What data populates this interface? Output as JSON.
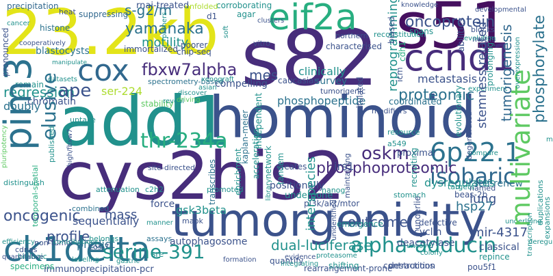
{
  "palette": {
    "dark_purple": "#45105f",
    "purple": "#472d7b",
    "indigo": "#3b528b",
    "blue": "#31688e",
    "teal_blue": "#2c728e",
    "teal": "#21918c",
    "sea_green": "#28ae80",
    "green": "#5ec962",
    "lime": "#addc30",
    "yellow": "#e3e419"
  },
  "words": [
    {
      "text": "23.2kb",
      "color": "yellow"
    },
    {
      "text": "s82",
      "color": "purple"
    },
    {
      "text": "s51",
      "color": "dark_purple"
    },
    {
      "text": "add1",
      "color": "teal"
    },
    {
      "text": "hominoid",
      "color": "indigo"
    },
    {
      "text": "cys2his2",
      "color": "purple"
    },
    {
      "text": "tumorgenicity",
      "color": "indigo"
    },
    {
      "text": "eif2a",
      "color": "sea_green"
    },
    {
      "text": "ccnd1",
      "color": "purple"
    },
    {
      "text": "pim3",
      "color": "teal_blue"
    },
    {
      "text": "ck1delta",
      "color": "teal_blue"
    },
    {
      "text": "cox",
      "color": "blue"
    },
    {
      "text": "fbxw7alpha",
      "color": "purple"
    },
    {
      "text": "isobaric",
      "color": "blue"
    },
    {
      "text": "multivariate",
      "color": "green"
    },
    {
      "text": "thr-234a",
      "color": "sea_green"
    },
    {
      "text": "6p22.1",
      "color": "teal_blue"
    },
    {
      "text": "serine-391",
      "color": "teal"
    },
    {
      "text": "alpha-adducin",
      "color": "teal"
    },
    {
      "text": "oskm",
      "color": "purple"
    },
    {
      "text": "elusive",
      "color": "teal_blue"
    },
    {
      "text": "phosphoproteomic",
      "color": "purple"
    },
    {
      "text": "tumorigenesis",
      "color": "blue"
    },
    {
      "text": "phosphorylate",
      "color": "teal_blue"
    },
    {
      "text": "yamanaka",
      "color": "teal_blue"
    },
    {
      "text": "motility",
      "color": "teal"
    },
    {
      "text": "s-g2/m",
      "color": "teal_blue"
    },
    {
      "text": "oncoprotein",
      "color": "indigo"
    },
    {
      "text": "regression",
      "color": "teal"
    },
    {
      "text": "ape",
      "color": "indigo"
    },
    {
      "text": "mes",
      "color": "indigo"
    },
    {
      "text": "ser-224",
      "color": "lime"
    },
    {
      "text": "proteomic",
      "color": "teal_blue"
    },
    {
      "text": "phosphopeptide",
      "color": "teal_blue"
    },
    {
      "text": "oncogenic",
      "color": "indigo"
    },
    {
      "text": "profile",
      "color": "indigo"
    },
    {
      "text": "outcome",
      "color": "indigo"
    },
    {
      "text": "mass",
      "color": "indigo"
    },
    {
      "text": "interspecies",
      "color": "teal"
    },
    {
      "text": "lung",
      "color": "indigo"
    },
    {
      "text": "hsp27",
      "color": "teal_blue"
    },
    {
      "text": "mir-4317",
      "color": "indigo"
    },
    {
      "text": "dual-luciferase",
      "color": "teal"
    },
    {
      "text": "reprogramming",
      "color": "teal"
    },
    {
      "text": "stemness-related",
      "color": "indigo"
    },
    {
      "text": "metastasis",
      "color": "indigo"
    },
    {
      "text": "irs1",
      "color": "indigo"
    },
    {
      "text": "dysregulates",
      "color": "teal"
    },
    {
      "text": "clinically",
      "color": "teal"
    },
    {
      "text": "survey",
      "color": "teal_blue"
    },
    {
      "text": "self-renew",
      "color": "teal_blue"
    },
    {
      "text": "sequentially",
      "color": "indigo"
    },
    {
      "text": "classical",
      "color": "indigo"
    },
    {
      "text": "gsk3beta",
      "color": "teal"
    },
    {
      "text": "compelling",
      "color": "indigo"
    },
    {
      "text": "coordinated",
      "color": "teal_blue"
    },
    {
      "text": "cyclin",
      "color": "indigo"
    },
    {
      "text": "autophagosome",
      "color": "indigo"
    },
    {
      "text": "deacetylase",
      "color": "indigo"
    },
    {
      "text": "positionally",
      "color": "indigo"
    },
    {
      "text": "chromatin",
      "color": "indigo"
    },
    {
      "text": "blastocysts",
      "color": "teal_blue"
    },
    {
      "text": "immunoprecipitation-pcr",
      "color": "indigo"
    },
    {
      "text": "rearrangement-prone",
      "color": "indigo"
    },
    {
      "text": "force",
      "color": "indigo"
    },
    {
      "text": "predict",
      "color": "teal_blue"
    },
    {
      "text": "histone",
      "color": "teal_blue"
    },
    {
      "text": "doubly",
      "color": "teal_blue"
    },
    {
      "text": "remain",
      "color": "teal"
    },
    {
      "text": "stability",
      "color": "green"
    },
    {
      "text": "suppressing",
      "color": "blue"
    },
    {
      "text": "precipitation",
      "color": "blue"
    },
    {
      "text": "rnai-treated",
      "color": "indigo"
    },
    {
      "text": "corroborating",
      "color": "teal"
    },
    {
      "text": "immortalized",
      "color": "indigo"
    },
    {
      "text": "agar",
      "color": "teal"
    },
    {
      "text": "d1",
      "color": "indigo"
    },
    {
      "text": "poorer",
      "color": "indigo"
    },
    {
      "text": "chip-seq",
      "color": "indigo"
    },
    {
      "text": "undergone",
      "color": "teal"
    },
    {
      "text": "pi3k/akt/mtor",
      "color": "indigo"
    },
    {
      "text": "combined",
      "color": "teal_blue"
    },
    {
      "text": "assays",
      "color": "teal_blue"
    },
    {
      "text": "spectrometry-based",
      "color": "teal_blue"
    },
    {
      "text": "recruiting",
      "color": "teal"
    },
    {
      "text": "biased",
      "color": "indigo"
    },
    {
      "text": "prolonging",
      "color": "teal"
    },
    {
      "text": "underlie",
      "color": "indigo"
    },
    {
      "text": "enrichment",
      "color": "teal"
    },
    {
      "text": "proximal",
      "color": "indigo"
    },
    {
      "text": "icm",
      "color": "indigo"
    },
    {
      "text": "contractions",
      "color": "indigo"
    },
    {
      "text": "beas-2b",
      "color": "indigo"
    },
    {
      "text": "pou5f1",
      "color": "indigo"
    },
    {
      "text": "quantify",
      "color": "indigo"
    },
    {
      "text": "vitro",
      "color": "indigo"
    },
    {
      "text": "characterised",
      "color": "indigo"
    },
    {
      "text": "caucasian",
      "color": "indigo"
    },
    {
      "text": "kaplan-meier",
      "color": "teal_blue"
    },
    {
      "text": "acceleration",
      "color": "teal"
    },
    {
      "text": "independent",
      "color": "teal"
    },
    {
      "text": "maintaining",
      "color": "indigo"
    },
    {
      "text": "creates",
      "color": "indigo"
    },
    {
      "text": "tandem",
      "color": "teal"
    },
    {
      "text": "network",
      "color": "teal"
    },
    {
      "text": "library",
      "color": "teal"
    },
    {
      "text": "transcribes",
      "color": "teal_blue"
    },
    {
      "text": "unidentified",
      "color": "indigo"
    },
    {
      "text": "emergence",
      "color": "teal"
    },
    {
      "text": "nanog",
      "color": "teal"
    },
    {
      "text": "c2h2",
      "color": "teal"
    },
    {
      "text": "mapk",
      "color": "indigo"
    },
    {
      "text": "sre",
      "color": "teal"
    },
    {
      "text": "belongs",
      "color": "teal"
    },
    {
      "text": "cos-7",
      "color": "indigo"
    },
    {
      "text": "cdnas",
      "color": "indigo"
    },
    {
      "text": "biologic",
      "color": "teal"
    },
    {
      "text": "specimens",
      "color": "sea_green"
    },
    {
      "text": "temporal-spatial",
      "color": "sea_green"
    },
    {
      "text": "published",
      "color": "teal"
    },
    {
      "text": "uptake",
      "color": "teal"
    },
    {
      "text": "site-directed",
      "color": "indigo"
    },
    {
      "text": "attenuation",
      "color": "teal"
    },
    {
      "text": "high/fbxw7",
      "color": "indigo"
    },
    {
      "text": "promoted",
      "color": "teal"
    },
    {
      "text": "destruction",
      "color": "indigo"
    },
    {
      "text": "shifting",
      "color": "teal"
    },
    {
      "text": "repince",
      "color": "teal"
    },
    {
      "text": "named",
      "color": "indigo"
    },
    {
      "text": "stomach",
      "color": "teal"
    },
    {
      "text": "targets",
      "color": "teal"
    },
    {
      "text": "defective",
      "color": "indigo"
    },
    {
      "text": "degenerated",
      "color": "indigo"
    },
    {
      "text": "evolutionary",
      "color": "teal"
    },
    {
      "text": "resource",
      "color": "teal"
    },
    {
      "text": "a549",
      "color": "teal"
    },
    {
      "text": "modifiers",
      "color": "indigo"
    },
    {
      "text": "recapitulated",
      "color": "indigo"
    },
    {
      "text": "spans",
      "color": "teal"
    },
    {
      "text": "cdh1",
      "color": "sea_green"
    },
    {
      "text": "abilities",
      "color": "indigo"
    },
    {
      "text": "blocks",
      "color": "indigo"
    },
    {
      "text": "motifs",
      "color": "indigo"
    },
    {
      "text": "reconstitution",
      "color": "teal"
    },
    {
      "text": "northern",
      "color": "indigo"
    },
    {
      "text": "tumorigenic",
      "color": "indigo"
    },
    {
      "text": "heat",
      "color": "indigo"
    },
    {
      "text": "cancer",
      "color": "teal"
    },
    {
      "text": "pronounced",
      "color": "indigo"
    },
    {
      "text": "pluripotency",
      "color": "green"
    },
    {
      "text": "distinguish",
      "color": "teal"
    },
    {
      "text": "efficiency",
      "color": "teal"
    },
    {
      "text": "non-tumor",
      "color": "indigo"
    },
    {
      "text": "quantitative",
      "color": "indigo"
    },
    {
      "text": "gastric",
      "color": "teal"
    },
    {
      "text": "manner",
      "color": "teal"
    },
    {
      "text": "labeling",
      "color": "teal"
    },
    {
      "text": "formation",
      "color": "indigo"
    },
    {
      "text": "colony",
      "color": "teal"
    },
    {
      "text": "compare",
      "color": "teal"
    },
    {
      "text": "expansions",
      "color": "teal"
    },
    {
      "text": "duplications",
      "color": "teal"
    },
    {
      "text": "experiment",
      "color": "teal"
    },
    {
      "text": "evolution",
      "color": "teal"
    },
    {
      "text": "knowledge",
      "color": "indigo"
    },
    {
      "text": "developmental",
      "color": "indigo"
    },
    {
      "text": "unfolded",
      "color": "lime"
    },
    {
      "text": "cooperatively",
      "color": "indigo"
    },
    {
      "text": "datasets",
      "color": "teal"
    },
    {
      "text": "clusters",
      "color": "indigo"
    },
    {
      "text": "primers",
      "color": "teal"
    },
    {
      "text": "integrating",
      "color": "teal"
    },
    {
      "text": "evidence",
      "color": "indigo"
    },
    {
      "text": "discover",
      "color": "teal"
    },
    {
      "text": "asian",
      "color": "teal"
    },
    {
      "text": "reveal",
      "color": "teal"
    },
    {
      "text": "driving",
      "color": "green"
    },
    {
      "text": "manipulate",
      "color": "teal"
    },
    {
      "text": "xenograft",
      "color": "teal"
    },
    {
      "text": "contributions",
      "color": "teal"
    },
    {
      "text": "soft",
      "color": "teal"
    },
    {
      "text": "mutagenesis",
      "color": "teal"
    },
    {
      "text": "overexpression",
      "color": "teal"
    },
    {
      "text": "underlying",
      "color": "teal"
    },
    {
      "text": "proteasome",
      "color": "teal"
    },
    {
      "text": "deregulation",
      "color": "teal"
    },
    {
      "text": "uncover",
      "color": "teal"
    },
    {
      "text": "transcription",
      "color": "teal"
    }
  ]
}
